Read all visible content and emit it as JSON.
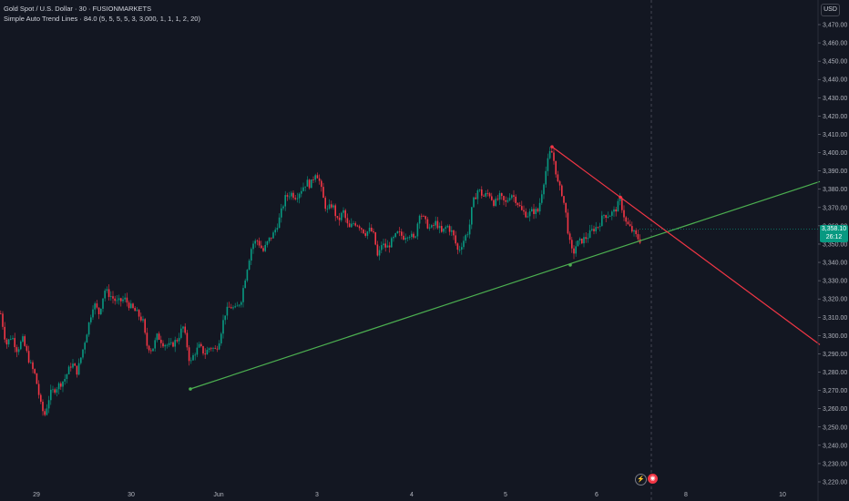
{
  "header": {
    "title": "Gold Spot / U.S. Dollar · 30 · FUSIONMARKETS",
    "indicator": "Simple Auto Trend Lines · 84.0 (5, 5, 5, 5, 3, 3,000, 1, 1, 1, 2, 20)"
  },
  "currency": "USD",
  "last_price": {
    "price": "3,358.10",
    "countdown": "26:12",
    "color": "#089981"
  },
  "icons": {
    "lightning": "lightning-icon",
    "event": "economic-event-icon"
  },
  "colors": {
    "up": "#089981",
    "down": "#f23645",
    "trend_support": "#4caf50",
    "trend_resistance": "#f23645",
    "background": "#131722"
  },
  "chart_data": {
    "type": "candlestick",
    "symbol": "XAUUSD",
    "timeframe": "30",
    "ylim": [
      3215,
      3475
    ],
    "y_ticks": [
      "3,220.00",
      "3,230.00",
      "3,240.00",
      "3,250.00",
      "3,260.00",
      "3,270.00",
      "3,280.00",
      "3,290.00",
      "3,300.00",
      "3,310.00",
      "3,320.00",
      "3,330.00",
      "3,340.00",
      "3,350.00",
      "3,360.00",
      "3,370.00",
      "3,380.00",
      "3,390.00",
      "3,400.00",
      "3,410.00",
      "3,420.00",
      "3,430.00",
      "3,440.00",
      "3,450.00",
      "3,460.00",
      "3,470.00"
    ],
    "x_ticks": [
      "29",
      "30",
      "Jun",
      "3",
      "4",
      "5",
      "6",
      "8",
      "10"
    ],
    "close_path": [
      [
        0,
        3312
      ],
      [
        6,
        3295
      ],
      [
        12,
        3300
      ],
      [
        18,
        3292
      ],
      [
        24,
        3298
      ],
      [
        32,
        3285
      ],
      [
        38,
        3278
      ],
      [
        44,
        3262
      ],
      [
        48,
        3256
      ],
      [
        54,
        3268
      ],
      [
        62,
        3272
      ],
      [
        70,
        3276
      ],
      [
        78,
        3285
      ],
      [
        84,
        3280
      ],
      [
        90,
        3292
      ],
      [
        96,
        3305
      ],
      [
        102,
        3318
      ],
      [
        108,
        3312
      ],
      [
        114,
        3325
      ],
      [
        120,
        3322
      ],
      [
        128,
        3318
      ],
      [
        136,
        3320
      ],
      [
        142,
        3316
      ],
      [
        150,
        3312
      ],
      [
        156,
        3308
      ],
      [
        160,
        3295
      ],
      [
        166,
        3292
      ],
      [
        172,
        3300
      ],
      [
        178,
        3296
      ],
      [
        186,
        3294
      ],
      [
        194,
        3298
      ],
      [
        200,
        3305
      ],
      [
        204,
        3296
      ],
      [
        208,
        3284
      ],
      [
        212,
        3290
      ],
      [
        218,
        3294
      ],
      [
        224,
        3290
      ],
      [
        230,
        3294
      ],
      [
        236,
        3292
      ],
      [
        240,
        3298
      ],
      [
        246,
        3312
      ],
      [
        252,
        3316
      ],
      [
        258,
        3314
      ],
      [
        264,
        3320
      ],
      [
        270,
        3336
      ],
      [
        276,
        3350
      ],
      [
        282,
        3352
      ],
      [
        288,
        3346
      ],
      [
        294,
        3352
      ],
      [
        300,
        3356
      ],
      [
        306,
        3364
      ],
      [
        312,
        3375
      ],
      [
        318,
        3378
      ],
      [
        324,
        3376
      ],
      [
        330,
        3380
      ],
      [
        336,
        3384
      ],
      [
        340,
        3382
      ],
      [
        346,
        3390
      ],
      [
        350,
        3384
      ],
      [
        354,
        3375
      ],
      [
        358,
        3368
      ],
      [
        364,
        3372
      ],
      [
        370,
        3362
      ],
      [
        376,
        3368
      ],
      [
        382,
        3358
      ],
      [
        388,
        3362
      ],
      [
        394,
        3360
      ],
      [
        400,
        3356
      ],
      [
        406,
        3358
      ],
      [
        410,
        3354
      ],
      [
        414,
        3342
      ],
      [
        418,
        3350
      ],
      [
        424,
        3348
      ],
      [
        430,
        3352
      ],
      [
        436,
        3356
      ],
      [
        442,
        3354
      ],
      [
        448,
        3356
      ],
      [
        454,
        3352
      ],
      [
        460,
        3368
      ],
      [
        466,
        3362
      ],
      [
        472,
        3358
      ],
      [
        478,
        3362
      ],
      [
        484,
        3356
      ],
      [
        490,
        3360
      ],
      [
        496,
        3356
      ],
      [
        502,
        3346
      ],
      [
        508,
        3352
      ],
      [
        514,
        3358
      ],
      [
        518,
        3372
      ],
      [
        524,
        3380
      ],
      [
        530,
        3376
      ],
      [
        536,
        3378
      ],
      [
        542,
        3372
      ],
      [
        548,
        3376
      ],
      [
        554,
        3372
      ],
      [
        560,
        3378
      ],
      [
        566,
        3374
      ],
      [
        572,
        3368
      ],
      [
        578,
        3366
      ],
      [
        584,
        3368
      ],
      [
        590,
        3368
      ],
      [
        596,
        3384
      ],
      [
        600,
        3394
      ],
      [
        604,
        3402
      ],
      [
        608,
        3394
      ],
      [
        612,
        3382
      ],
      [
        616,
        3378
      ],
      [
        620,
        3368
      ],
      [
        624,
        3352
      ],
      [
        628,
        3344
      ],
      [
        632,
        3350
      ],
      [
        638,
        3352
      ],
      [
        644,
        3354
      ],
      [
        650,
        3358
      ],
      [
        656,
        3360
      ],
      [
        662,
        3366
      ],
      [
        668,
        3366
      ],
      [
        674,
        3368
      ],
      [
        680,
        3374
      ],
      [
        686,
        3362
      ],
      [
        692,
        3358
      ],
      [
        698,
        3354
      ],
      [
        702,
        3352
      ]
    ],
    "trendlines": [
      {
        "name": "support",
        "color": "#4caf50",
        "x": [
          209,
          900
        ],
        "y": [
          3270.8,
          3384.2
        ]
      },
      {
        "name": "resistance",
        "color": "#f23645",
        "x": [
          606,
          900
        ],
        "y": [
          3403.2,
          3295.0
        ]
      }
    ],
    "now_marker_x": 715,
    "grid": false,
    "legend": "top-left"
  }
}
